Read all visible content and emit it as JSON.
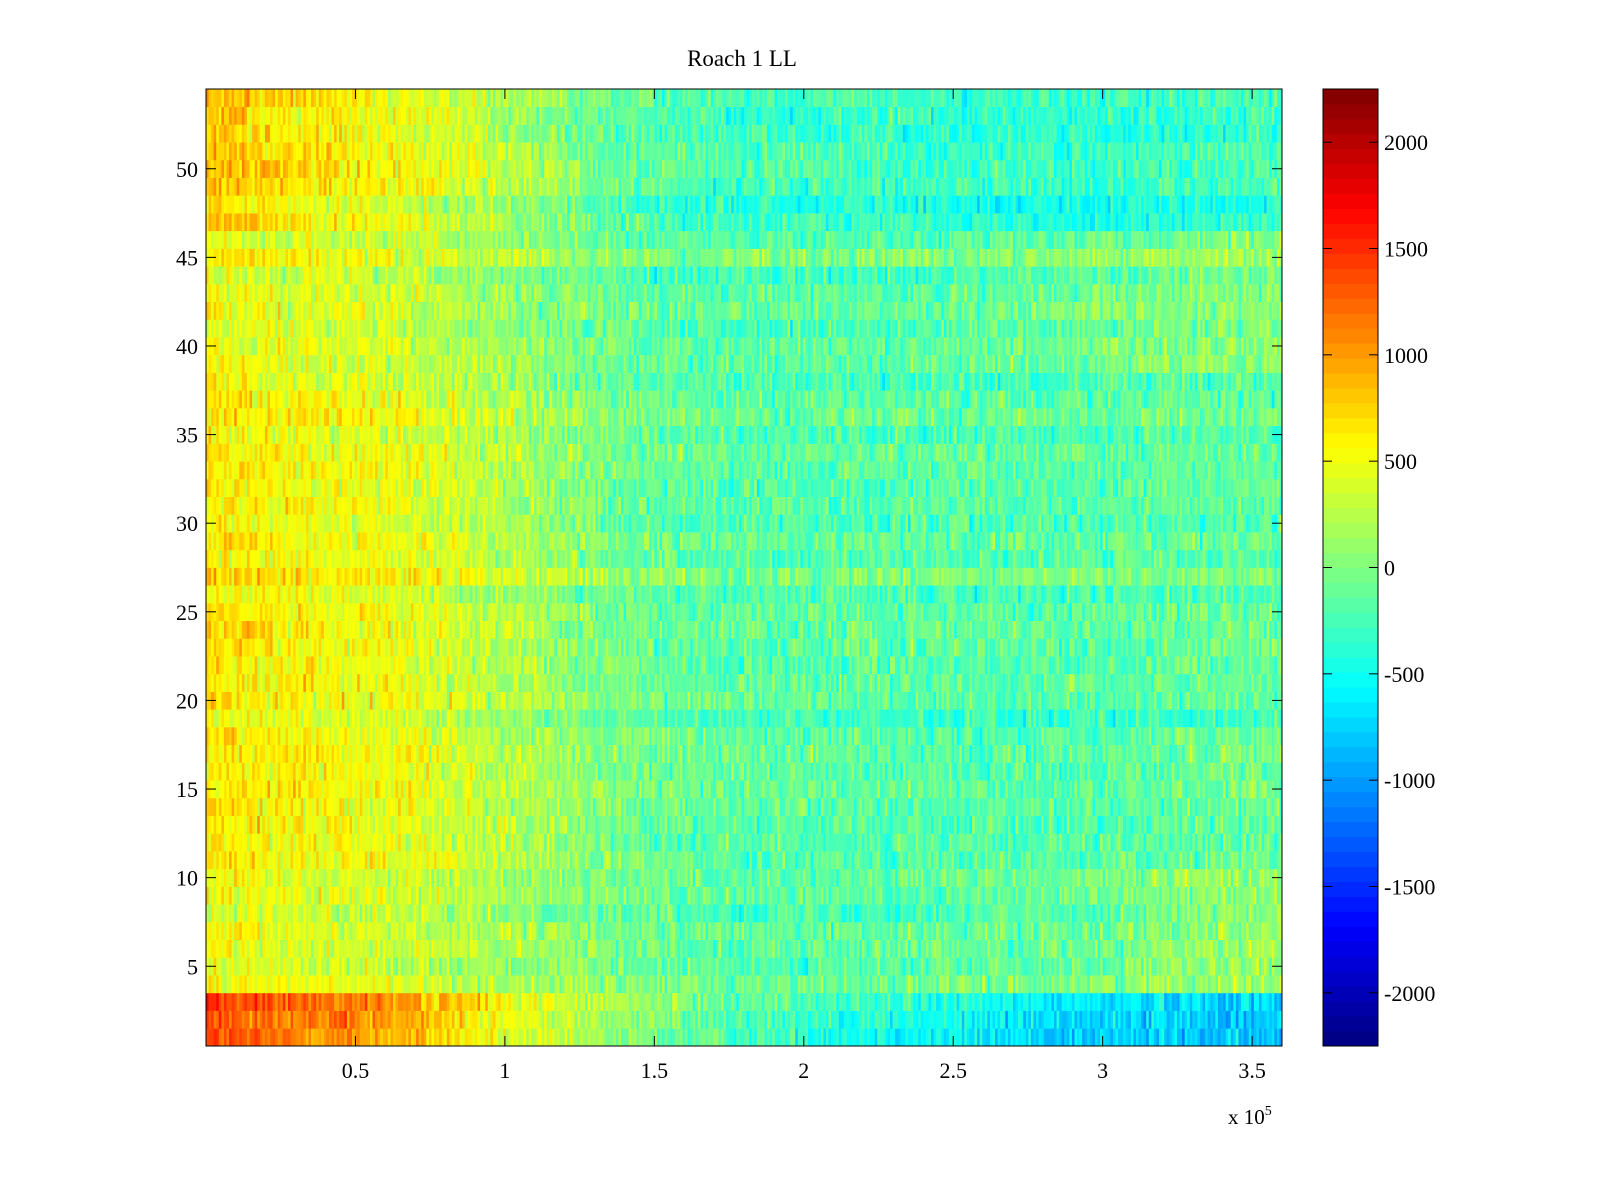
{
  "chart_data": {
    "type": "heatmap",
    "title": "Roach 1 LL",
    "xlabel": "",
    "ylabel": "",
    "x_exponent_label": "x 10",
    "x_exponent": "5",
    "xlim": [
      0,
      360000
    ],
    "ylim": [
      0.5,
      54.5
    ],
    "rows": 54,
    "x_ticks": [
      50000,
      100000,
      150000,
      200000,
      250000,
      300000,
      350000
    ],
    "x_tick_labels": [
      "0.5",
      "1",
      "1.5",
      "2",
      "2.5",
      "3",
      "3.5"
    ],
    "y_ticks": [
      5,
      10,
      15,
      20,
      25,
      30,
      35,
      40,
      45,
      50
    ],
    "y_tick_labels": [
      "5",
      "10",
      "15",
      "20",
      "25",
      "30",
      "35",
      "40",
      "45",
      "50"
    ],
    "colormap": "jet",
    "clim": [
      -2250,
      2250
    ],
    "colorbar_ticks": [
      2000,
      1500,
      1000,
      500,
      0,
      -500,
      -1000,
      -1500,
      -2000
    ],
    "colorbar_tick_labels": [
      "2000",
      "1500",
      "1000",
      "500",
      "0",
      "-500",
      "-1000",
      "-1500",
      "-2000"
    ],
    "trend_x": [
      0,
      20000,
      40000,
      60000,
      80000,
      100000,
      120000,
      140000,
      160000,
      180000,
      200000,
      220000,
      240000,
      260000,
      280000,
      300000,
      320000,
      340000,
      360000
    ],
    "trend_row_groups": [
      {
        "rows": [
          1,
          3
        ],
        "values": [
          1450,
          1250,
          1150,
          1000,
          800,
          500,
          300,
          100,
          -50,
          -150,
          -250,
          -350,
          -450,
          -550,
          -650,
          -700,
          -700,
          -750,
          -800
        ]
      },
      {
        "rows": [
          4,
          10
        ],
        "values": [
          500,
          450,
          400,
          350,
          250,
          150,
          50,
          -50,
          -100,
          -150,
          -150,
          -150,
          -150,
          -100,
          -100,
          -50,
          50,
          100,
          100
        ]
      },
      {
        "rows": [
          11,
          20
        ],
        "values": [
          650,
          550,
          500,
          450,
          350,
          200,
          50,
          -100,
          -150,
          -200,
          -200,
          -200,
          -250,
          -250,
          -250,
          -250,
          -200,
          -150,
          -150
        ]
      },
      {
        "rows": [
          21,
          38
        ],
        "values": [
          700,
          600,
          550,
          500,
          400,
          250,
          100,
          -50,
          -100,
          -150,
          -150,
          -150,
          -150,
          -150,
          -150,
          -150,
          -100,
          -100,
          -100
        ]
      },
      {
        "rows": [
          39,
          46
        ],
        "values": [
          550,
          450,
          400,
          350,
          250,
          150,
          0,
          -100,
          -150,
          -150,
          -150,
          -150,
          -150,
          -100,
          -100,
          -50,
          0,
          50,
          50
        ]
      },
      {
        "rows": [
          47,
          54
        ],
        "values": [
          900,
          750,
          650,
          550,
          450,
          250,
          50,
          -100,
          -200,
          -250,
          -250,
          -250,
          -300,
          -300,
          -300,
          -350,
          -300,
          -250,
          -200
        ]
      }
    ]
  }
}
